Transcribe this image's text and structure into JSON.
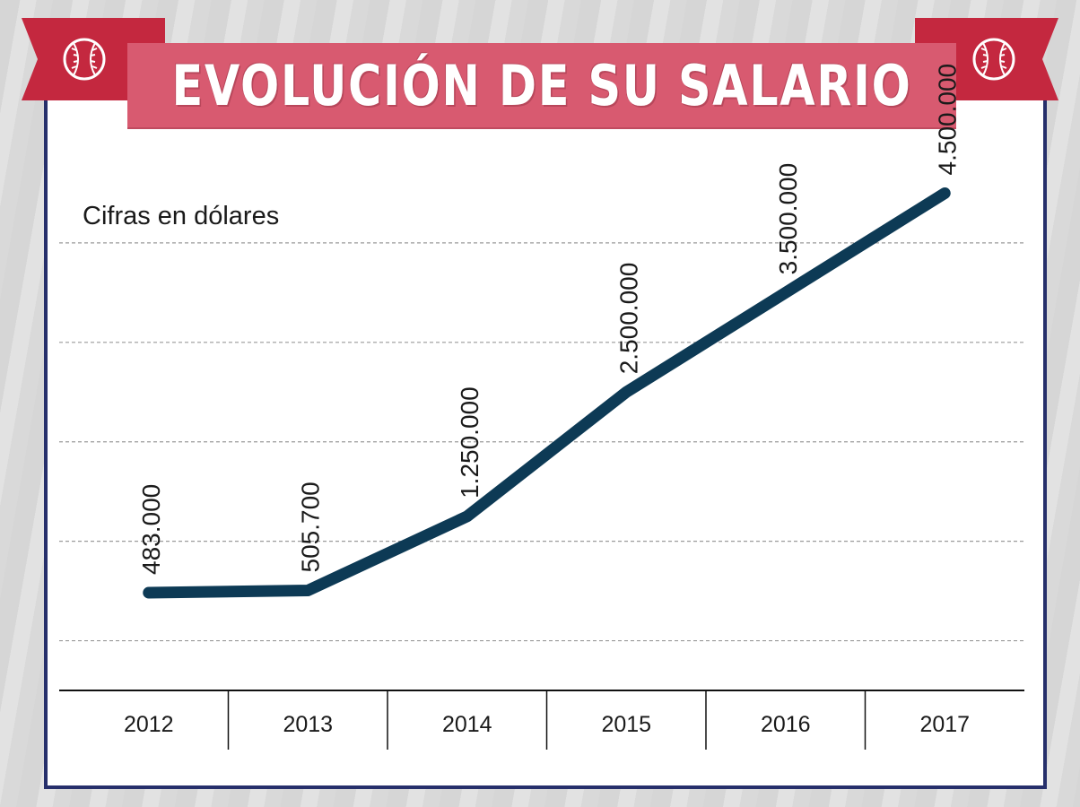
{
  "chart_data": {
    "type": "line",
    "title": "EVOLUCIÓN DE SU SALARIO",
    "unit_label": "Cifras en dólares",
    "xlabel": "",
    "ylabel": "",
    "categories": [
      "2012",
      "2013",
      "2014",
      "2015",
      "2016",
      "2017"
    ],
    "values": [
      483000,
      505700,
      1250000,
      2500000,
      3500000,
      4500000
    ],
    "value_labels": [
      "483.000",
      "505.700",
      "1.250.000",
      "2.500.000",
      "3.500.000",
      "4.500.000"
    ],
    "ylim": [
      -500000,
      5000000
    ],
    "grid": true,
    "line_color": "#0d3a55"
  },
  "colors": {
    "banner": "#d85a70",
    "ribbon": "#c4283f",
    "frame": "#262f6b",
    "line": "#0d3a55"
  },
  "icons": {
    "ribbon_left": "baseball-icon",
    "ribbon_right": "baseball-icon"
  }
}
